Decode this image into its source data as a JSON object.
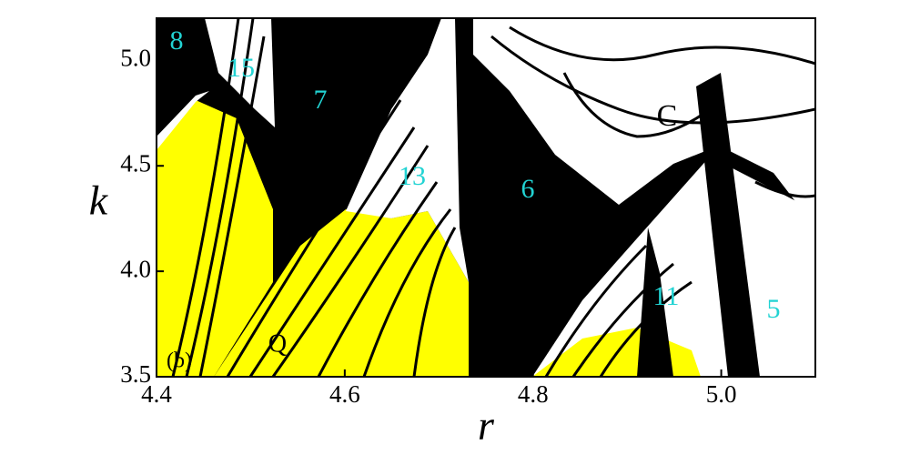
{
  "chart_data": {
    "type": "region-map",
    "x_label": "r",
    "y_label": "k",
    "xlim": [
      4.4,
      5.1
    ],
    "ylim": [
      3.5,
      5.2
    ],
    "xticks": [
      4.4,
      4.6,
      4.8,
      {
        "value": 5,
        "label": "5.0"
      }
    ],
    "yticks": [
      3.5,
      {
        "value": 4,
        "label": "4.0"
      },
      4.5,
      {
        "value": 5,
        "label": "5.0"
      }
    ],
    "annotations": [
      {
        "text": "8",
        "color": "#22d3d3"
      },
      {
        "text": "15",
        "color": "#22d3d3"
      },
      {
        "text": "7",
        "color": "#22d3d3"
      },
      {
        "text": "13",
        "color": "#22d3d3"
      },
      {
        "text": "6",
        "color": "#22d3d3"
      },
      {
        "text": "11",
        "color": "#22d3d3"
      },
      {
        "text": "5",
        "color": "#22d3d3"
      },
      {
        "text": "Q",
        "color": "#000000"
      },
      {
        "text": "C",
        "color": "#000000"
      },
      {
        "text": "(b)",
        "color": "#000000"
      }
    ]
  }
}
